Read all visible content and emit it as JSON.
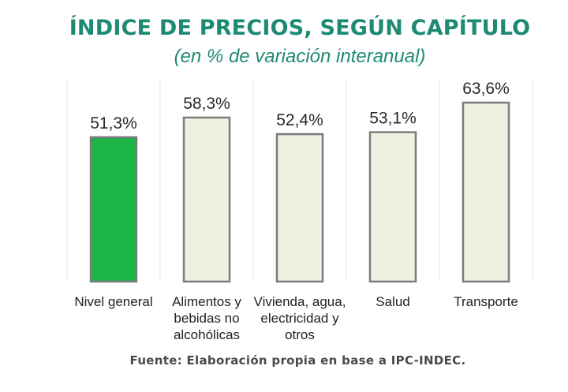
{
  "title": "ÍNDICE DE PRECIOS, SEGÚN CAPÍTULO",
  "subtitle": "(en % de variación interanual)",
  "source": "Fuente: Elaboración propia en base a IPC-INDEC.",
  "colors": {
    "highlight_fill": "#1db446",
    "bar_fill": "#eef1df",
    "bar_stroke": "#7c7c7c",
    "grid": "#e6e6e6",
    "title": "#1e8a73"
  },
  "chart_data": {
    "type": "bar",
    "categories": [
      [
        "Nivel general"
      ],
      [
        "Alimentos y",
        "bebidas no",
        "alcohólicas"
      ],
      [
        "Vivienda, agua,",
        "electricidad y",
        "otros"
      ],
      [
        "Salud"
      ],
      [
        "Transporte"
      ]
    ],
    "values": [
      51.3,
      58.3,
      52.4,
      53.1,
      63.6
    ],
    "value_labels": [
      "51,3%",
      "58,3%",
      "52,4%",
      "53,1%",
      "63,6%"
    ],
    "highlight_index": 0,
    "unit": "%",
    "ylim": [
      0,
      70
    ],
    "grid": "vertical separators between categories",
    "legend": "none"
  }
}
